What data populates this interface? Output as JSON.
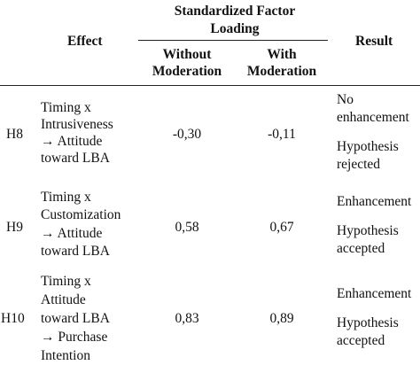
{
  "header": {
    "effect": "Effect",
    "sfl_line1": "Standardized Factor",
    "sfl_line2": "Loading",
    "without_line1": "Without",
    "without_line2": "Moderation",
    "with_line1": "With",
    "with_line2": "Moderation",
    "result": "Result"
  },
  "rows": [
    {
      "id": "H8",
      "effect_lines": [
        "Timing x",
        "Intrusiveness",
        "→ Attitude",
        "toward LBA"
      ],
      "without": "-0,30",
      "with": "-0,11",
      "result_lines": [
        "No",
        "enhancement",
        "Hypothesis",
        "rejected"
      ]
    },
    {
      "id": "H9",
      "effect_lines": [
        "Timing x",
        "Customization",
        "→ Attitude",
        "toward LBA"
      ],
      "without": "0,58",
      "with": "0,67",
      "result_lines": [
        "Enhancement",
        "Hypothesis",
        "accepted"
      ]
    },
    {
      "id": "H10",
      "effect_lines": [
        "Timing x",
        "Attitude",
        "toward LBA",
        "→ Purchase",
        "Intention"
      ],
      "without": "0,83",
      "with": "0,89",
      "result_lines": [
        "Enhancement",
        "Hypothesis",
        "accepted"
      ]
    }
  ]
}
